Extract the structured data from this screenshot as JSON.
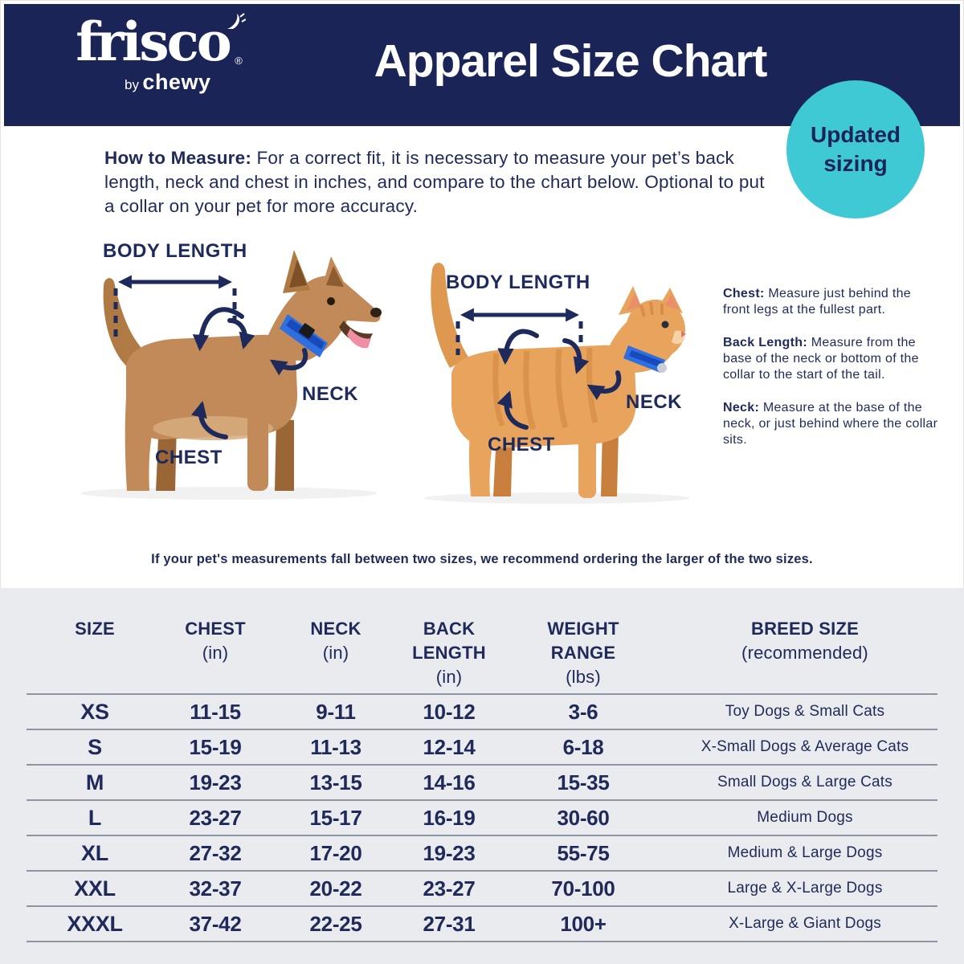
{
  "header": {
    "logo": {
      "brand": "frisco",
      "registered": "®",
      "by": "by",
      "chewy": "chewy"
    },
    "title": "Apparel Size Chart",
    "badge": {
      "line1": "Updated",
      "line2": "sizing"
    }
  },
  "how_to_measure": {
    "label": "How to Measure:",
    "text": "For a correct fit, it is necessary to measure your pet’s back length, neck and chest in inches, and compare to the chart below. Optional to put a collar on your pet for more accuracy."
  },
  "diagram": {
    "dog": {
      "body_length": "BODY LENGTH",
      "neck": "NECK",
      "chest": "CHEST"
    },
    "cat": {
      "body_length": "BODY LENGTH",
      "neck": "NECK",
      "chest": "CHEST"
    }
  },
  "measure_tips": [
    {
      "label": "Chest:",
      "text": "Measure just behind the front legs at the fullest part."
    },
    {
      "label": "Back Length:",
      "text": "Measure from the base of the neck or bottom of the collar to the start of the tail."
    },
    {
      "label": "Neck:",
      "text": "Measure at the base of the neck, or just behind where the collar sits."
    }
  ],
  "note": "If your pet's measurements fall between two sizes, we recommend ordering the larger of the two sizes.",
  "size_table": {
    "headers": [
      {
        "title": "SIZE",
        "sub": ""
      },
      {
        "title": "CHEST",
        "sub": "(in)"
      },
      {
        "title": "NECK",
        "sub": "(in)"
      },
      {
        "title": "BACK LENGTH",
        "sub": "(in)"
      },
      {
        "title": "WEIGHT RANGE",
        "sub": "(lbs)"
      },
      {
        "title": "BREED SIZE",
        "sub": "(recommended)"
      }
    ],
    "rows": [
      {
        "size": "XS",
        "chest": "11-15",
        "neck": "9-11",
        "back_length": "10-12",
        "weight": "3-6",
        "breed": "Toy Dogs & Small Cats"
      },
      {
        "size": "S",
        "chest": "15-19",
        "neck": "11-13",
        "back_length": "12-14",
        "weight": "6-18",
        "breed": "X-Small Dogs & Average Cats"
      },
      {
        "size": "M",
        "chest": "19-23",
        "neck": "13-15",
        "back_length": "14-16",
        "weight": "15-35",
        "breed": "Small Dogs & Large Cats"
      },
      {
        "size": "L",
        "chest": "23-27",
        "neck": "15-17",
        "back_length": "16-19",
        "weight": "30-60",
        "breed": "Medium Dogs"
      },
      {
        "size": "XL",
        "chest": "27-32",
        "neck": "17-20",
        "back_length": "19-23",
        "weight": "55-75",
        "breed": "Medium & Large Dogs"
      },
      {
        "size": "XXL",
        "chest": "32-37",
        "neck": "20-22",
        "back_length": "23-27",
        "weight": "70-100",
        "breed": "Large & X-Large Dogs"
      },
      {
        "size": "XXXL",
        "chest": "37-42",
        "neck": "22-25",
        "back_length": "27-31",
        "weight": "100+",
        "breed": "X-Large & Giant Dogs"
      }
    ]
  },
  "colors": {
    "header_navy": "#1b2456",
    "text_navy": "#1f2a5a",
    "badge_teal": "#3ec9d5",
    "table_background": "#e9ebee",
    "table_line": "#8d95a2",
    "collar_blue": "#2f6fe0",
    "dog_fur": "#c18a58",
    "cat_fur": "#e8a45c"
  }
}
